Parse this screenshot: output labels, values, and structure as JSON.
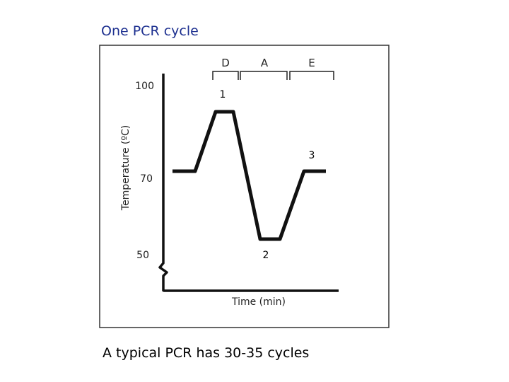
{
  "slide": {
    "title": "One PCR cycle",
    "caption": "A typical PCR has 30-35 cycles"
  },
  "diagram": {
    "y_axis_label": "Temperature (ºC)",
    "x_axis_label": "Time (min)",
    "y_ticks": [
      "100",
      "70",
      "50"
    ],
    "phase_labels": [
      "D",
      "A",
      "E"
    ],
    "step_numbers": [
      "1",
      "2",
      "3"
    ]
  },
  "colors": {
    "title": "#1c2f8f",
    "line": "#111111",
    "frame": "#333333"
  }
}
